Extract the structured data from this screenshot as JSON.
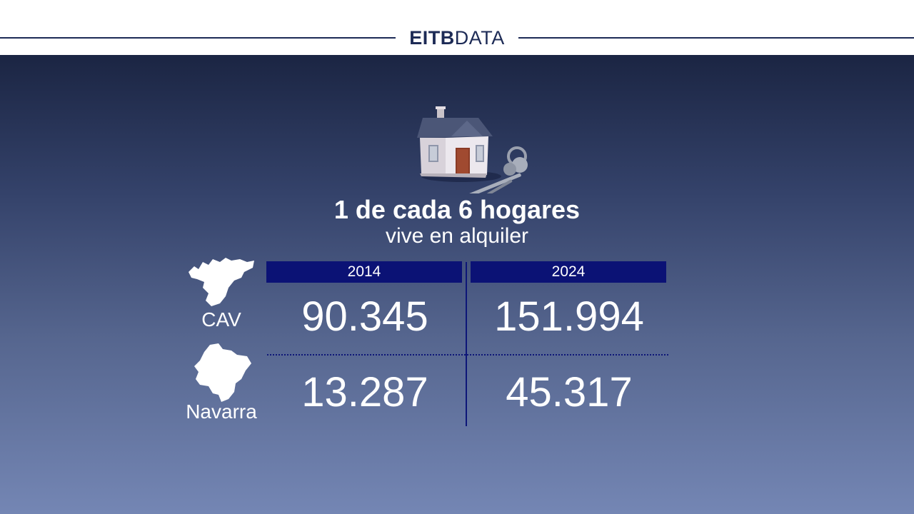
{
  "header": {
    "brand_bold": "EITB",
    "brand_light": "DATA"
  },
  "headline": "1 de cada 6 hogares",
  "subline": "vive en alquiler",
  "icons": {
    "illustration": "house-with-keys-icon",
    "region_maps": [
      "cav-map-icon",
      "navarra-map-icon"
    ]
  },
  "colors": {
    "header_bg": "#ffffff",
    "brand": "#1d2b56",
    "background_top": "#1b2543",
    "background_bottom": "#7486b4",
    "column_header_bg": "#0b1275",
    "text": "#ffffff"
  },
  "chart_data": {
    "type": "table",
    "columns": [
      "2014",
      "2024"
    ],
    "rows": [
      {
        "region": "CAV",
        "values": [
          "90.345",
          "151.994"
        ]
      },
      {
        "region": "Navarra",
        "values": [
          "13.287",
          "45.317"
        ]
      }
    ]
  }
}
